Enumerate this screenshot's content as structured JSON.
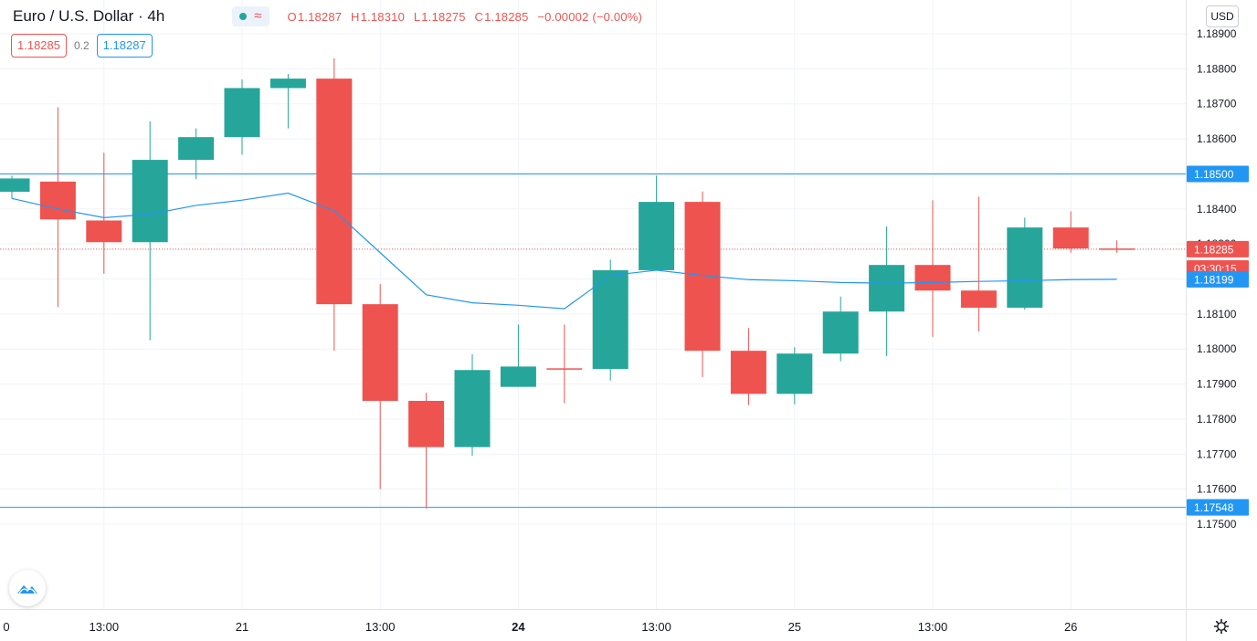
{
  "symbol": {
    "title": "Euro / U.S. Dollar · 4h"
  },
  "ohlc": {
    "open_label": "O",
    "open": "1.18287",
    "high_label": "H",
    "high": "1.18310",
    "low_label": "L",
    "low": "1.18275",
    "close_label": "C",
    "close": "1.18285",
    "change": "−0.00002 (−0.00%)"
  },
  "status": {
    "wave_glyph": "≈"
  },
  "quote": {
    "sell": "1.18285",
    "spread": "0.2",
    "buy": "1.18287"
  },
  "currency": "USD",
  "colors": {
    "up": "#26a69a",
    "down": "#ef5350",
    "ma_line": "#2196f3",
    "hline": "#2196f3",
    "price_line": "#ef5350",
    "grid": "#f0f3fa"
  },
  "icons": {
    "logo": "tradingview-logo-icon",
    "settings": "gear-icon"
  },
  "chart_data": {
    "type": "candlestick",
    "title": "Euro / U.S. Dollar",
    "interval": "4h",
    "ylim": [
      1.1744,
      1.1902
    ],
    "y_ticks": [
      "1.17500",
      "1.17600",
      "1.17700",
      "1.17800",
      "1.17900",
      "1.18000",
      "1.18100",
      "1.18200",
      "1.18300",
      "1.18400",
      "1.18500",
      "1.18600",
      "1.18700",
      "1.18800",
      "1.18900"
    ],
    "x_ticks": [
      {
        "label": "0",
        "i": -0.93
      },
      {
        "label": "13:00",
        "i": 2
      },
      {
        "label": "21",
        "i": 5
      },
      {
        "label": "13:00",
        "i": 8
      },
      {
        "label": "24",
        "i": 11
      },
      {
        "label": "13:00",
        "i": 14
      },
      {
        "label": "25",
        "i": 17
      },
      {
        "label": "13:00",
        "i": 20
      },
      {
        "label": "26",
        "i": 23
      }
    ],
    "candles": [
      {
        "o": 1.18449,
        "h": 1.18495,
        "l": 1.1843,
        "c": 1.18487
      },
      {
        "o": 1.18478,
        "h": 1.1869,
        "l": 1.1812,
        "c": 1.1837
      },
      {
        "o": 1.18367,
        "h": 1.1856,
        "l": 1.18215,
        "c": 1.18305
      },
      {
        "o": 1.18305,
        "h": 1.1865,
        "l": 1.18025,
        "c": 1.1854
      },
      {
        "o": 1.1854,
        "h": 1.1863,
        "l": 1.18485,
        "c": 1.18605
      },
      {
        "o": 1.18605,
        "h": 1.1877,
        "l": 1.18555,
        "c": 1.18745
      },
      {
        "o": 1.18745,
        "h": 1.18785,
        "l": 1.1863,
        "c": 1.18772
      },
      {
        "o": 1.18772,
        "h": 1.1883,
        "l": 1.17995,
        "c": 1.18128
      },
      {
        "o": 1.18128,
        "h": 1.18185,
        "l": 1.176,
        "c": 1.17852
      },
      {
        "o": 1.17852,
        "h": 1.17875,
        "l": 1.17545,
        "c": 1.1772
      },
      {
        "o": 1.1772,
        "h": 1.17985,
        "l": 1.17695,
        "c": 1.1794
      },
      {
        "o": 1.17892,
        "h": 1.1807,
        "l": 1.17892,
        "c": 1.1795
      },
      {
        "o": 1.17945,
        "h": 1.1807,
        "l": 1.17845,
        "c": 1.17943
      },
      {
        "o": 1.17943,
        "h": 1.18255,
        "l": 1.1791,
        "c": 1.18225
      },
      {
        "o": 1.18225,
        "h": 1.18495,
        "l": 1.18225,
        "c": 1.1842
      },
      {
        "o": 1.1842,
        "h": 1.1845,
        "l": 1.1792,
        "c": 1.17995
      },
      {
        "o": 1.17995,
        "h": 1.1806,
        "l": 1.1784,
        "c": 1.17872
      },
      {
        "o": 1.17872,
        "h": 1.18005,
        "l": 1.17842,
        "c": 1.17987
      },
      {
        "o": 1.17987,
        "h": 1.1815,
        "l": 1.17965,
        "c": 1.18107
      },
      {
        "o": 1.18107,
        "h": 1.1835,
        "l": 1.1798,
        "c": 1.1824
      },
      {
        "o": 1.1824,
        "h": 1.18425,
        "l": 1.18035,
        "c": 1.18167
      },
      {
        "o": 1.18167,
        "h": 1.18435,
        "l": 1.1805,
        "c": 1.18118
      },
      {
        "o": 1.18118,
        "h": 1.18375,
        "l": 1.18112,
        "c": 1.18347
      },
      {
        "o": 1.18347,
        "h": 1.18393,
        "l": 1.18275,
        "c": 1.18287
      },
      {
        "o": 1.18287,
        "h": 1.1831,
        "l": 1.18275,
        "c": 1.18285
      }
    ],
    "moving_average": [
      {
        "i": 0,
        "v": 1.1843
      },
      {
        "i": 1,
        "v": 1.184
      },
      {
        "i": 2,
        "v": 1.18375
      },
      {
        "i": 3,
        "v": 1.18385
      },
      {
        "i": 4,
        "v": 1.1841
      },
      {
        "i": 5,
        "v": 1.18425
      },
      {
        "i": 6,
        "v": 1.18445
      },
      {
        "i": 7,
        "v": 1.18395
      },
      {
        "i": 8,
        "v": 1.18275
      },
      {
        "i": 9,
        "v": 1.18155
      },
      {
        "i": 10,
        "v": 1.18132
      },
      {
        "i": 11,
        "v": 1.18125
      },
      {
        "i": 12,
        "v": 1.18115
      },
      {
        "i": 13,
        "v": 1.1821
      },
      {
        "i": 14,
        "v": 1.18225
      },
      {
        "i": 15,
        "v": 1.1821
      },
      {
        "i": 16,
        "v": 1.18198
      },
      {
        "i": 17,
        "v": 1.18195
      },
      {
        "i": 18,
        "v": 1.1819
      },
      {
        "i": 19,
        "v": 1.18188
      },
      {
        "i": 20,
        "v": 1.1819
      },
      {
        "i": 21,
        "v": 1.18193
      },
      {
        "i": 22,
        "v": 1.18195
      },
      {
        "i": 23,
        "v": 1.18198
      },
      {
        "i": 24,
        "v": 1.18199
      }
    ],
    "horizontal_lines": [
      1.185,
      1.17548
    ],
    "last_price": 1.18285,
    "price_labels": [
      {
        "text": "1.18500",
        "value": 1.185,
        "color": "#2196f3"
      },
      {
        "text": "1.18285",
        "value": 1.18285,
        "color": "#ef5350"
      },
      {
        "text": "03:30:15",
        "value": 1.1823,
        "color": "#ef5350"
      },
      {
        "text": "1.18199",
        "value": 1.18199,
        "color": "#2196f3"
      },
      {
        "text": "1.17548",
        "value": 1.17548,
        "color": "#2196f3"
      }
    ],
    "grid": true
  }
}
